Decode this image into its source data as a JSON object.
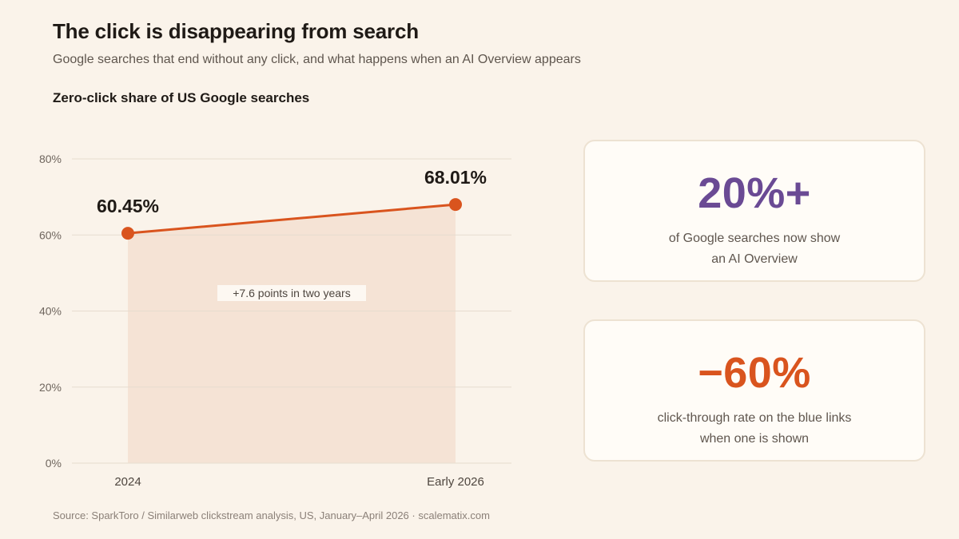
{
  "header": {
    "title": "The click is disappearing from search",
    "subtitle": "Google searches that end without any click, and what happens when an AI Overview appears"
  },
  "chart_heading": "Zero-click share of US Google searches",
  "chart_data": {
    "type": "area",
    "title": "Zero-click share of US Google searches",
    "categories": [
      "2024",
      "Early 2026"
    ],
    "series": [
      {
        "values": [
          60.45,
          68.01
        ]
      }
    ],
    "data_labels": [
      "60.45%",
      "68.01%"
    ],
    "ylim": [
      0,
      80
    ],
    "y_ticks": [
      0,
      20,
      40,
      60,
      80
    ],
    "y_tick_labels": [
      "0%",
      "20%",
      "40%",
      "60%",
      "80%"
    ],
    "grid": true,
    "annotation": "+7.6 points in two years",
    "colors": {
      "line": "#d9541e",
      "fill": "#f5e3d5",
      "grid": "#e6dccf"
    }
  },
  "stat_cards": [
    {
      "value": "20%+",
      "description": "of Google searches now show\nan AI Overview",
      "color": "#6a4a94"
    },
    {
      "value": "−60%",
      "description": "click-through rate on the blue links\nwhen one is shown",
      "color": "#d9541e"
    }
  ],
  "footer": {
    "source": "Source: SparkToro / Similarweb clickstream analysis, US, January–April 2026  ·  scalematix.com"
  }
}
